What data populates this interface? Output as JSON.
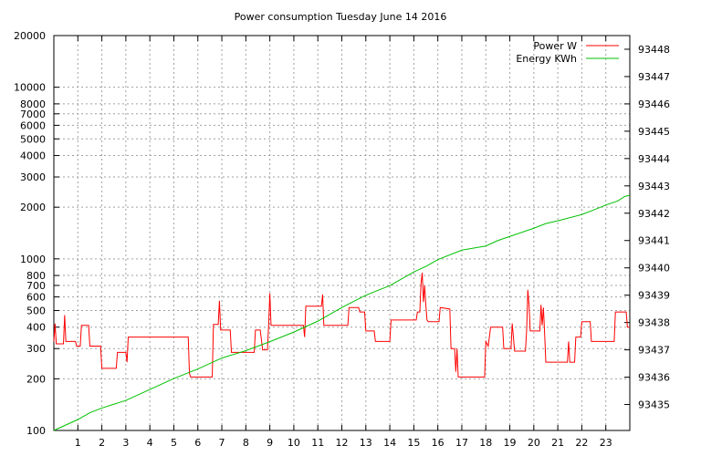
{
  "chart_data": {
    "type": "line",
    "title": "Power consumption Tuesday June 14 2016",
    "grid": true,
    "legend_position": "top-right",
    "x_axis": {
      "range": [
        0,
        24
      ],
      "ticks": [
        1,
        2,
        3,
        4,
        5,
        6,
        7,
        8,
        9,
        10,
        11,
        12,
        13,
        14,
        15,
        16,
        17,
        18,
        19,
        20,
        21,
        22,
        23
      ]
    },
    "y_left": {
      "scale": "log",
      "range": [
        100,
        20000
      ],
      "ticks": [
        100,
        200,
        300,
        400,
        500,
        600,
        700,
        800,
        1000,
        2000,
        3000,
        4000,
        5000,
        6000,
        7000,
        8000,
        10000,
        20000
      ]
    },
    "y_right": {
      "scale": "linear",
      "range": [
        93434.05,
        93448.5
      ],
      "ticks": [
        93435,
        93436,
        93437,
        93438,
        93439,
        93440,
        93441,
        93442,
        93443,
        93444,
        93445,
        93446,
        93447,
        93448
      ]
    },
    "series": [
      {
        "name": "Power W",
        "color": "#ff0000",
        "axis": "left",
        "points": [
          [
            0.0,
            330
          ],
          [
            0.05,
            420
          ],
          [
            0.1,
            320
          ],
          [
            0.4,
            320
          ],
          [
            0.45,
            470
          ],
          [
            0.5,
            330
          ],
          [
            0.9,
            330
          ],
          [
            0.95,
            310
          ],
          [
            1.1,
            310
          ],
          [
            1.15,
            410
          ],
          [
            1.45,
            410
          ],
          [
            1.5,
            310
          ],
          [
            1.95,
            310
          ],
          [
            2.0,
            230
          ],
          [
            2.6,
            230
          ],
          [
            2.65,
            285
          ],
          [
            3.0,
            285
          ],
          [
            3.05,
            250
          ],
          [
            3.1,
            350
          ],
          [
            5.6,
            350
          ],
          [
            5.65,
            215
          ],
          [
            5.7,
            205
          ],
          [
            6.6,
            205
          ],
          [
            6.65,
            415
          ],
          [
            6.85,
            415
          ],
          [
            6.9,
            570
          ],
          [
            6.95,
            385
          ],
          [
            7.35,
            385
          ],
          [
            7.4,
            285
          ],
          [
            8.35,
            285
          ],
          [
            8.4,
            385
          ],
          [
            8.6,
            385
          ],
          [
            8.7,
            295
          ],
          [
            8.9,
            295
          ],
          [
            8.95,
            410
          ],
          [
            9.0,
            630
          ],
          [
            9.05,
            410
          ],
          [
            10.4,
            410
          ],
          [
            10.45,
            350
          ],
          [
            10.5,
            530
          ],
          [
            11.15,
            530
          ],
          [
            11.2,
            620
          ],
          [
            11.25,
            410
          ],
          [
            12.25,
            410
          ],
          [
            12.3,
            520
          ],
          [
            12.7,
            520
          ],
          [
            12.75,
            490
          ],
          [
            12.95,
            490
          ],
          [
            13.0,
            380
          ],
          [
            13.35,
            380
          ],
          [
            13.4,
            330
          ],
          [
            14.0,
            330
          ],
          [
            14.05,
            440
          ],
          [
            15.1,
            440
          ],
          [
            15.15,
            490
          ],
          [
            15.25,
            490
          ],
          [
            15.3,
            720
          ],
          [
            15.35,
            830
          ],
          [
            15.4,
            560
          ],
          [
            15.45,
            700
          ],
          [
            15.5,
            540
          ],
          [
            15.55,
            440
          ],
          [
            15.6,
            430
          ],
          [
            16.05,
            430
          ],
          [
            16.1,
            520
          ],
          [
            16.5,
            510
          ],
          [
            16.55,
            300
          ],
          [
            16.7,
            300
          ],
          [
            16.75,
            220
          ],
          [
            16.8,
            300
          ],
          [
            16.85,
            205
          ],
          [
            17.95,
            205
          ],
          [
            18.0,
            330
          ],
          [
            18.1,
            310
          ],
          [
            18.2,
            400
          ],
          [
            18.7,
            400
          ],
          [
            18.75,
            300
          ],
          [
            19.05,
            300
          ],
          [
            19.1,
            420
          ],
          [
            19.2,
            290
          ],
          [
            19.65,
            290
          ],
          [
            19.7,
            380
          ],
          [
            19.75,
            660
          ],
          [
            19.8,
            540
          ],
          [
            19.85,
            380
          ],
          [
            20.25,
            380
          ],
          [
            20.3,
            540
          ],
          [
            20.35,
            410
          ],
          [
            20.4,
            520
          ],
          [
            20.45,
            370
          ],
          [
            20.5,
            250
          ],
          [
            21.4,
            250
          ],
          [
            21.45,
            330
          ],
          [
            21.5,
            250
          ],
          [
            21.7,
            250
          ],
          [
            21.75,
            350
          ],
          [
            21.95,
            350
          ],
          [
            22.0,
            430
          ],
          [
            22.35,
            430
          ],
          [
            22.4,
            330
          ],
          [
            23.35,
            330
          ],
          [
            23.4,
            490
          ],
          [
            23.85,
            490
          ],
          [
            23.9,
            400
          ],
          [
            24.0,
            400
          ]
        ]
      },
      {
        "name": "Energy KWh",
        "color": "#00c000",
        "axis": "right",
        "points": [
          [
            0.0,
            93434.05
          ],
          [
            0.5,
            93434.25
          ],
          [
            1.0,
            93434.45
          ],
          [
            1.5,
            93434.7
          ],
          [
            2.0,
            93434.87
          ],
          [
            3.0,
            93435.15
          ],
          [
            4.0,
            93435.55
          ],
          [
            5.0,
            93435.95
          ],
          [
            6.0,
            93436.3
          ],
          [
            7.0,
            93436.7
          ],
          [
            8.0,
            93436.97
          ],
          [
            9.0,
            93437.3
          ],
          [
            10.0,
            93437.65
          ],
          [
            11.0,
            93438.05
          ],
          [
            12.0,
            93438.55
          ],
          [
            13.0,
            93439.0
          ],
          [
            14.0,
            93439.35
          ],
          [
            15.0,
            93439.85
          ],
          [
            15.5,
            93440.05
          ],
          [
            16.0,
            93440.3
          ],
          [
            17.0,
            93440.65
          ],
          [
            18.0,
            93440.8
          ],
          [
            18.5,
            93441.0
          ],
          [
            19.0,
            93441.15
          ],
          [
            20.0,
            93441.45
          ],
          [
            20.5,
            93441.62
          ],
          [
            21.0,
            93441.72
          ],
          [
            22.0,
            93441.95
          ],
          [
            22.5,
            93442.12
          ],
          [
            23.0,
            93442.3
          ],
          [
            23.5,
            93442.45
          ],
          [
            23.8,
            93442.62
          ],
          [
            24.0,
            93442.65
          ]
        ]
      }
    ]
  }
}
